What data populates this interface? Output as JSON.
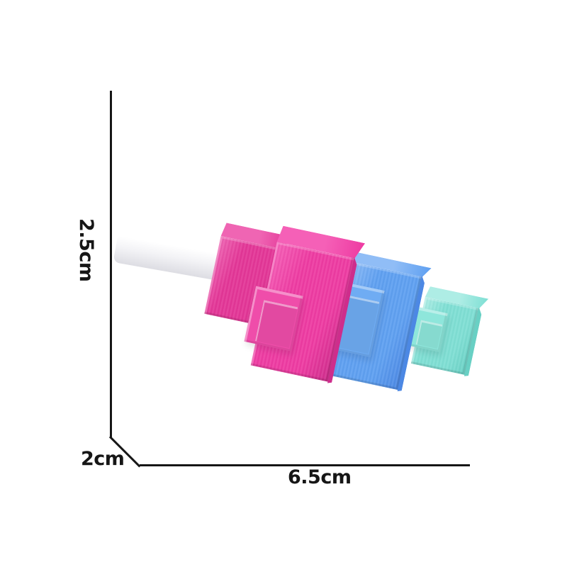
{
  "scene": {
    "background": "#ffffff",
    "description": "Product dimension photo of interlocking plastic puzzle blocks with a white pin"
  },
  "dimension_annotation": {
    "line_color": "#161616",
    "text_color": "#161616",
    "height": {
      "label": "2.5cm"
    },
    "depth": {
      "label": "2cm"
    },
    "width": {
      "label": "6.5cm"
    }
  },
  "product": {
    "name": "stacked-plastic-puzzle-blocks",
    "parts": [
      {
        "id": "white-rod",
        "label": "white pin rod",
        "base": "#f3f3f6",
        "light": "#ffffff",
        "dark": "#dddde3"
      },
      {
        "id": "pink-small-block",
        "label": "small pink block",
        "base": "#e33697",
        "light": "#ef65b3",
        "dark": "#c62a80"
      },
      {
        "id": "pink-large-block",
        "label": "large pink block",
        "base": "#ee3ba2",
        "light": "#f560b7",
        "dark": "#ce2d8c",
        "pad": "#ef4daa"
      },
      {
        "id": "blue-block",
        "label": "blue block",
        "base": "#5fa0f1",
        "light": "#90bdf6",
        "dark": "#4c88e4",
        "pad": "#6facf3"
      },
      {
        "id": "teal-block",
        "label": "teal block",
        "base": "#7fdfd4",
        "light": "#aeede5",
        "dark": "#69d0c4",
        "pad": "#8ee6db"
      }
    ]
  }
}
